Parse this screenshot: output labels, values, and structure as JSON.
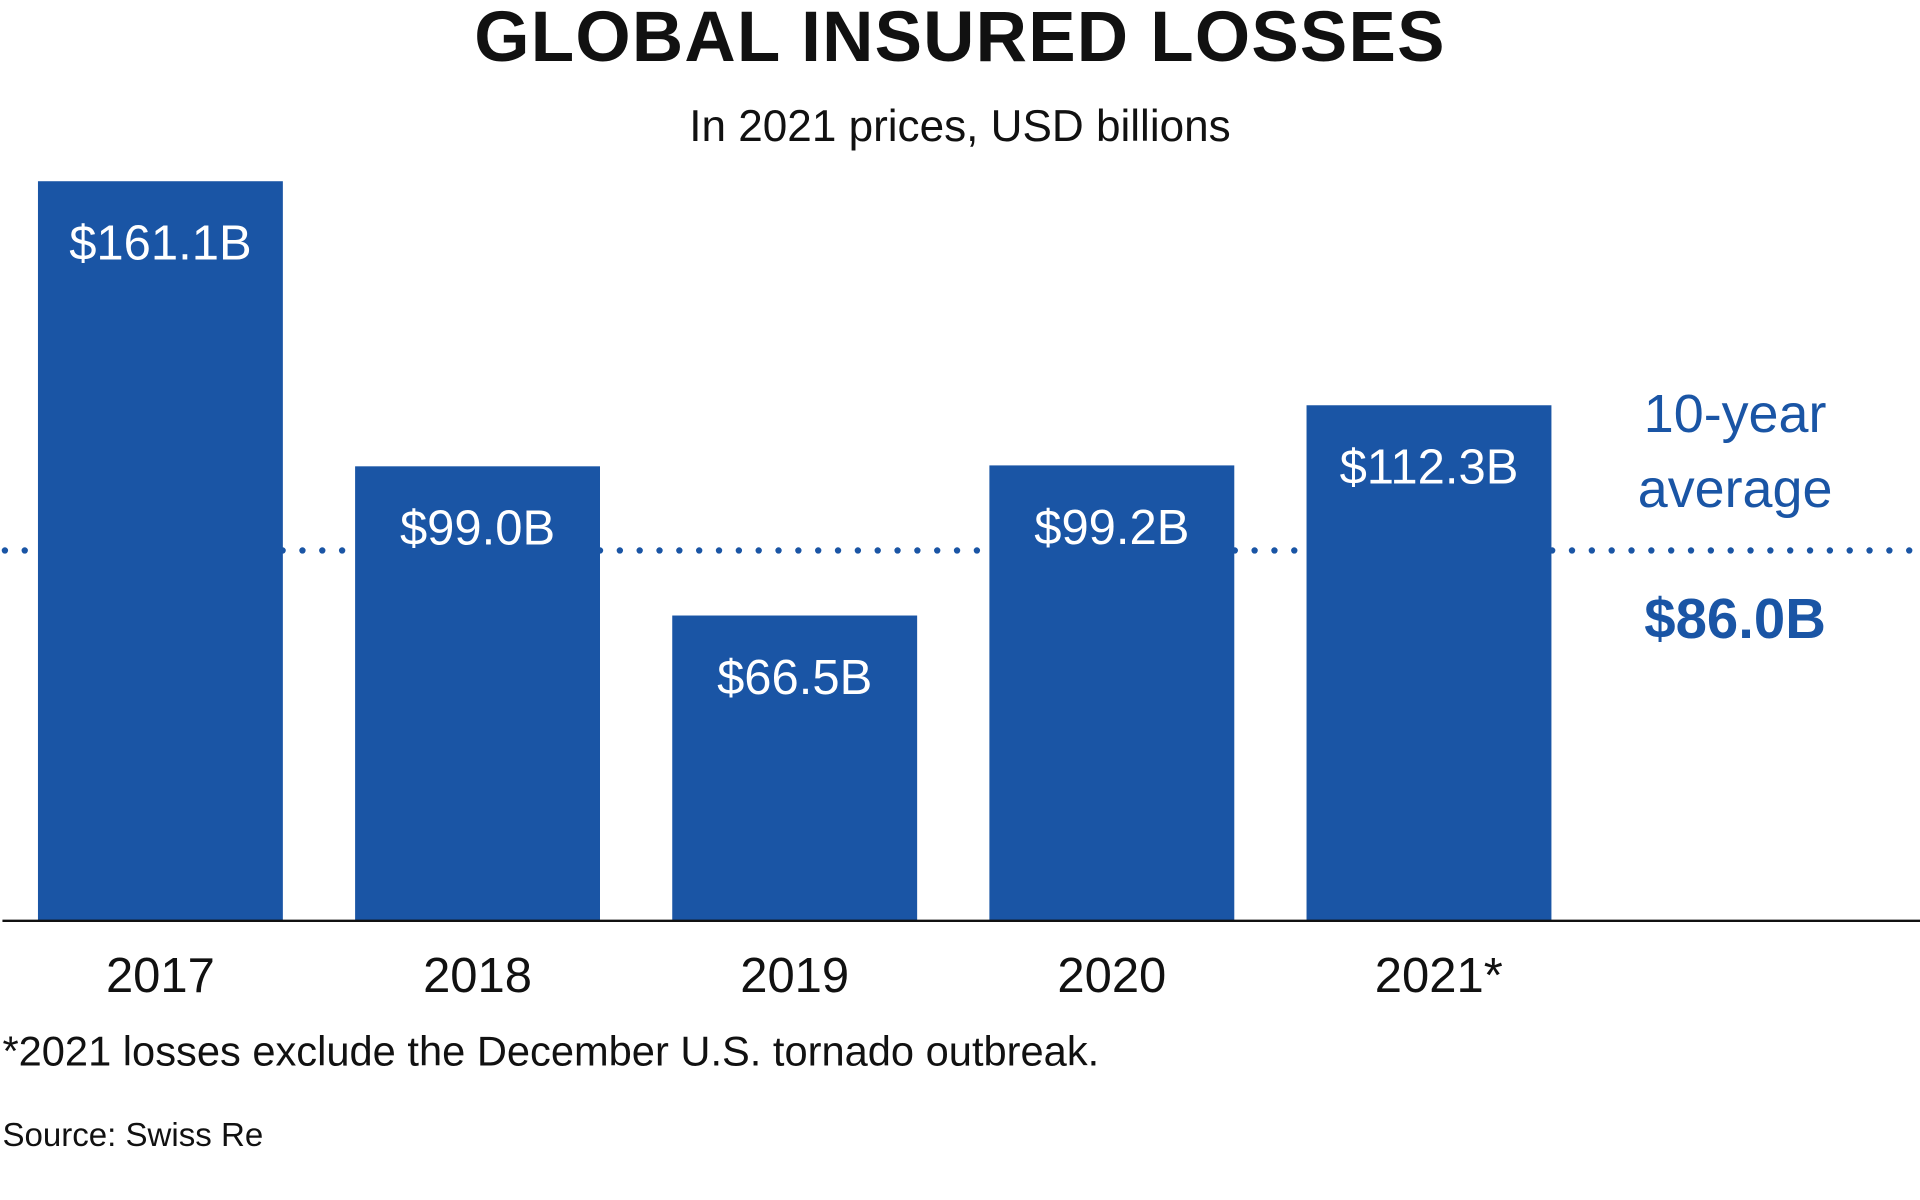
{
  "chart_data": {
    "type": "bar",
    "title": "GLOBAL INSURED LOSSES",
    "subtitle": "In 2021 prices, USD billions",
    "categories": [
      "2017",
      "2018",
      "2019",
      "2020",
      "2021*"
    ],
    "values": [
      161.1,
      99.0,
      66.5,
      99.2,
      112.3
    ],
    "data_labels": [
      "$161.1B",
      "$99.0B",
      "$66.5B",
      "$99.2B",
      "$112.3B"
    ],
    "ylim": [
      0,
      161.1
    ],
    "y_axis_shown": false,
    "grid": false,
    "reference_line": {
      "value": 86.0,
      "label_line1": "10-year",
      "label_line2": "average",
      "value_label": "$86.0B",
      "style": "dotted"
    },
    "bar_color": "#1a55a5",
    "footnote": "*2021 losses exclude the December U.S. tornado outbreak.",
    "source": "Source: Swiss Re"
  }
}
